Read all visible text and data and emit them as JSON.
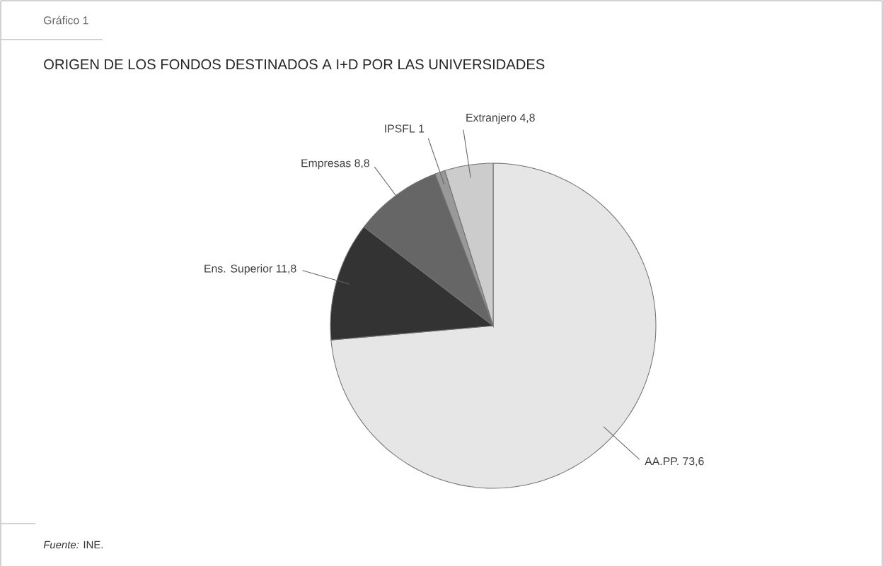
{
  "chart_data": {
    "type": "pie",
    "title": "ORIGEN DE LOS FONDOS DESTINADOS A I+D POR LAS UNIVERSIDADES",
    "categories": [
      "AA.PP.",
      "Ens. Superior",
      "Empresas",
      "IPSFL",
      "Extranjero"
    ],
    "values": [
      73.6,
      11.8,
      8.8,
      1,
      4.8
    ],
    "value_labels": [
      "73,6",
      "11,8",
      "8,8",
      "1",
      "4,8"
    ],
    "colors": [
      "#e6e6e6",
      "#333333",
      "#666666",
      "#999999",
      "#cccccc"
    ],
    "annotations": [
      "Gráfico 1",
      "*Fuente:* INE."
    ]
  }
}
